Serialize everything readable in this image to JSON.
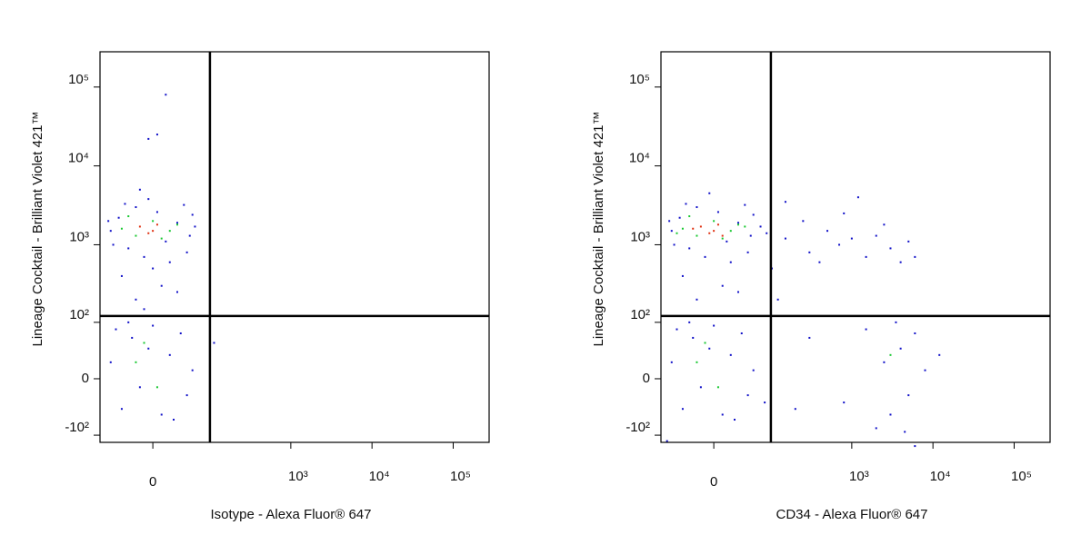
{
  "chart_data": [
    {
      "type": "scatter",
      "xlabel": "Isotype - Alexa Fluor® 647",
      "ylabel": "Lineage Cocktail - Brilliant Violet 421™",
      "xscale": "biexponential",
      "yscale": "biexponential",
      "xlim": [
        -85,
        277000
      ],
      "ylim": [
        -125,
        280000
      ],
      "xticks": [
        0,
        {
          "value": 1000,
          "label": "10³"
        },
        {
          "value": 10000,
          "label": "10⁴"
        },
        {
          "value": 100000,
          "label": "10⁵"
        }
      ],
      "yticks": [
        {
          "value": 100000,
          "label": "10⁵"
        },
        {
          "value": 10000,
          "label": "10⁴"
        },
        {
          "value": 1000,
          "label": "10³"
        },
        {
          "value": 100,
          "label": "10²"
        },
        0,
        {
          "value": -100,
          "label": "-10²"
        }
      ],
      "quadrant": {
        "x": 97,
        "y": 122
      },
      "series": [
        {
          "color": "#1010c8",
          "x": [
            -60,
            -45,
            -30,
            -20,
            -10,
            5,
            15,
            30,
            45,
            55,
            -55,
            40,
            -35,
            20,
            -5,
            50,
            60,
            -65,
            -60,
            -40,
            -25,
            -15,
            0,
            10,
            20,
            35,
            45,
            -50,
            25,
            -5,
            55,
            -30,
            -20,
            10,
            -40,
            30,
            0,
            -10,
            5,
            15,
            -5,
            110,
            -15
          ],
          "values": [
            1500,
            2200,
            900,
            3000,
            700,
            2600,
            1100,
            1900,
            800,
            2400,
            1000,
            3200,
            3300,
            600,
            3800,
            1300,
            1700,
            2000,
            20,
            -40,
            60,
            -10,
            90,
            -50,
            30,
            70,
            -20,
            80,
            -60,
            40,
            10,
            100,
            200,
            300,
            400,
            250,
            500,
            150,
            25000,
            80000,
            22000,
            50,
            5000
          ]
        },
        {
          "color": "#18c830",
          "x": [
            -40,
            -20,
            0,
            20,
            -30,
            10,
            -10,
            5,
            -20,
            30
          ],
          "values": [
            1600,
            1300,
            2000,
            1500,
            2300,
            1200,
            50,
            -10,
            20,
            1800
          ]
        },
        {
          "color": "#e03010",
          "x": [
            -15,
            0,
            5,
            -5
          ],
          "values": [
            1700,
            1500,
            1800,
            1400
          ]
        }
      ]
    },
    {
      "type": "scatter",
      "xlabel": "CD34 - Alexa Fluor® 647",
      "ylabel": "Lineage Cocktail - Brilliant Violet 421™",
      "xscale": "biexponential",
      "yscale": "biexponential",
      "xlim": [
        -85,
        277000
      ],
      "ylim": [
        -125,
        280000
      ],
      "xticks": [
        0,
        {
          "value": 1000,
          "label": "10³"
        },
        {
          "value": 10000,
          "label": "10⁴"
        },
        {
          "value": 100000,
          "label": "10⁵"
        }
      ],
      "yticks": [
        {
          "value": 100000,
          "label": "10⁵"
        },
        {
          "value": 10000,
          "label": "10⁴"
        },
        {
          "value": 1000,
          "label": "10³"
        },
        {
          "value": 100,
          "label": "10²"
        },
        0,
        {
          "value": -100,
          "label": "-10²"
        }
      ],
      "quadrant": {
        "x": 97,
        "y": 122
      },
      "series": [
        {
          "color": "#1010c8",
          "x": [
            -60,
            -45,
            -30,
            -20,
            -10,
            5,
            15,
            30,
            45,
            55,
            -55,
            40,
            -35,
            20,
            -5,
            50,
            70,
            -65,
            85,
            -60,
            -40,
            -25,
            -15,
            0,
            10,
            20,
            35,
            45,
            -50,
            25,
            -5,
            55,
            -30,
            80,
            -20,
            10,
            -40,
            30,
            150,
            300,
            500,
            700,
            1000,
            1500,
            2000,
            3000,
            4000,
            6000,
            250,
            800,
            1200,
            400,
            2500,
            150,
            5000,
            300,
            800,
            1500,
            2500,
            3000,
            4000,
            5000,
            6000,
            8000,
            3500,
            2000,
            200,
            12000,
            4500,
            -70,
            6000,
            100,
            120
          ],
          "values": [
            1500,
            2200,
            900,
            3000,
            700,
            2600,
            1100,
            1900,
            800,
            2400,
            1000,
            3200,
            3300,
            600,
            4500,
            1300,
            1700,
            2000,
            1400,
            20,
            -40,
            60,
            -10,
            90,
            -50,
            30,
            70,
            -20,
            80,
            -60,
            40,
            10,
            100,
            -30,
            200,
            300,
            400,
            250,
            1200,
            800,
            1500,
            1000,
            1200,
            700,
            1300,
            900,
            600,
            700,
            2000,
            2500,
            4000,
            600,
            1800,
            3500,
            1100,
            60,
            -30,
            80,
            20,
            -50,
            40,
            -20,
            70,
            10,
            100,
            -80,
            -40,
            30,
            -90,
            -120,
            -140,
            500,
            200
          ]
        },
        {
          "color": "#18c830",
          "x": [
            -40,
            -20,
            0,
            20,
            -30,
            10,
            40,
            -50,
            -10,
            5,
            -20,
            30,
            3000
          ],
          "values": [
            1600,
            1300,
            2000,
            1500,
            2300,
            1200,
            1700,
            1400,
            50,
            -10,
            20,
            1800,
            30
          ]
        },
        {
          "color": "#e03010",
          "x": [
            -15,
            0,
            5,
            -5,
            -25,
            10
          ],
          "values": [
            1700,
            1500,
            1800,
            1400,
            1600,
            1300
          ]
        }
      ]
    }
  ]
}
